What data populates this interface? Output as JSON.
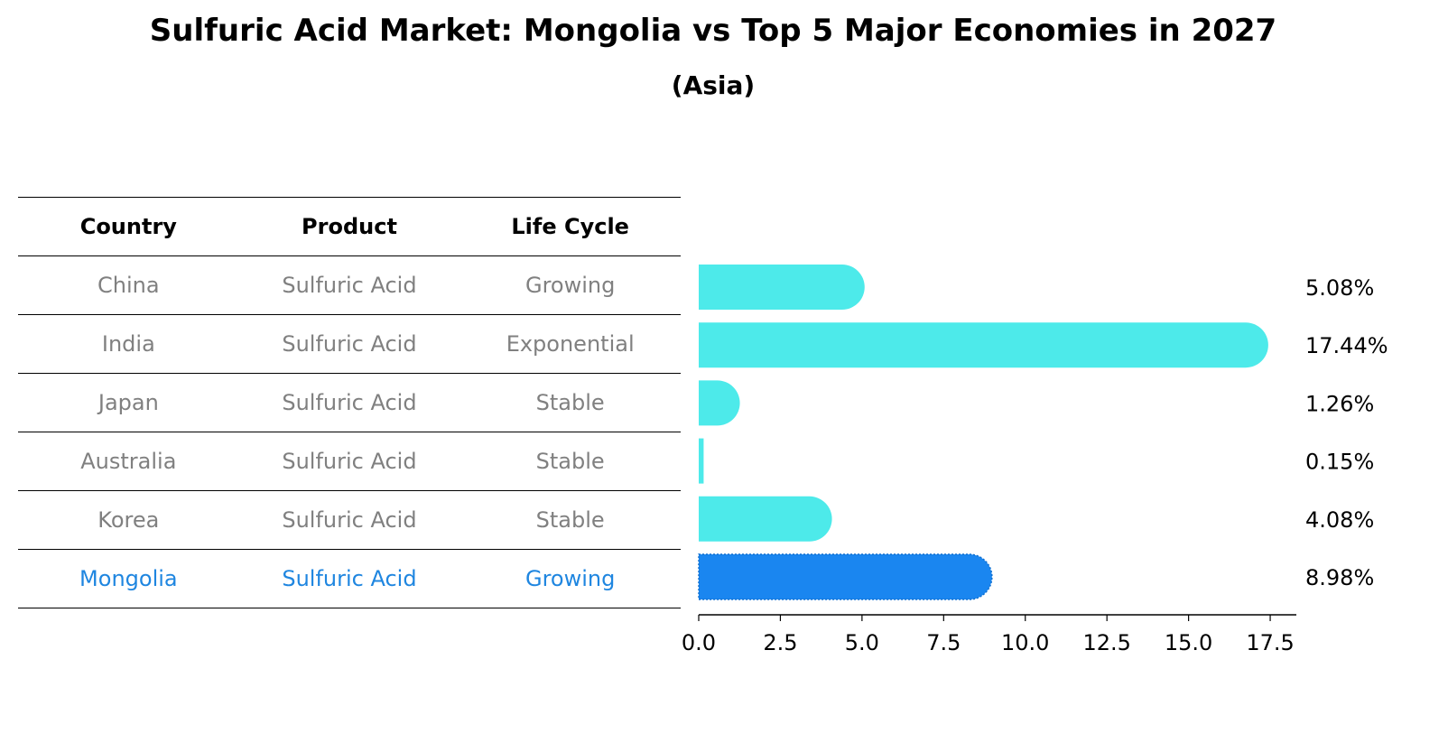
{
  "title": "Sulfuric Acid Market: Mongolia vs Top 5 Major Economies in 2027",
  "subtitle": "(Asia)",
  "table": {
    "headers": [
      "Country",
      "Product",
      "Life Cycle"
    ],
    "rows": [
      {
        "country": "China",
        "product": "Sulfuric Acid",
        "life_cycle": "Growing"
      },
      {
        "country": "India",
        "product": "Sulfuric Acid",
        "life_cycle": "Exponential"
      },
      {
        "country": "Japan",
        "product": "Sulfuric Acid",
        "life_cycle": "Stable"
      },
      {
        "country": "Australia",
        "product": "Sulfuric Acid",
        "life_cycle": "Stable"
      },
      {
        "country": "Korea",
        "product": "Sulfuric Acid",
        "life_cycle": "Stable"
      },
      {
        "country": "Mongolia",
        "product": "Sulfuric Acid",
        "life_cycle": "Growing"
      }
    ]
  },
  "colors": {
    "bar": "#4deaea",
    "highlight": "#1a86f0",
    "highlight_text": "#1f86e0",
    "muted_text": "#808080"
  },
  "chart_data": {
    "type": "bar",
    "orientation": "horizontal",
    "title": "Sulfuric Acid Market: Mongolia vs Top 5 Major Economies in 2027",
    "subtitle": "(Asia)",
    "categories": [
      "China",
      "India",
      "Japan",
      "Australia",
      "Korea",
      "Mongolia"
    ],
    "values": [
      5.08,
      17.44,
      1.26,
      0.15,
      4.08,
      8.98
    ],
    "value_labels": [
      "5.08%",
      "17.44%",
      "1.26%",
      "0.15%",
      "4.08%",
      "8.98%"
    ],
    "highlight_category": "Mongolia",
    "xlim": [
      0,
      18.3
    ],
    "xticks": [
      0.0,
      2.5,
      5.0,
      7.5,
      10.0,
      12.5,
      15.0,
      17.5
    ],
    "xtick_labels": [
      "0.0",
      "2.5",
      "5.0",
      "7.5",
      "10.0",
      "12.5",
      "15.0",
      "17.5"
    ],
    "xlabel": "",
    "ylabel": "",
    "grid": false,
    "legend": "none"
  }
}
